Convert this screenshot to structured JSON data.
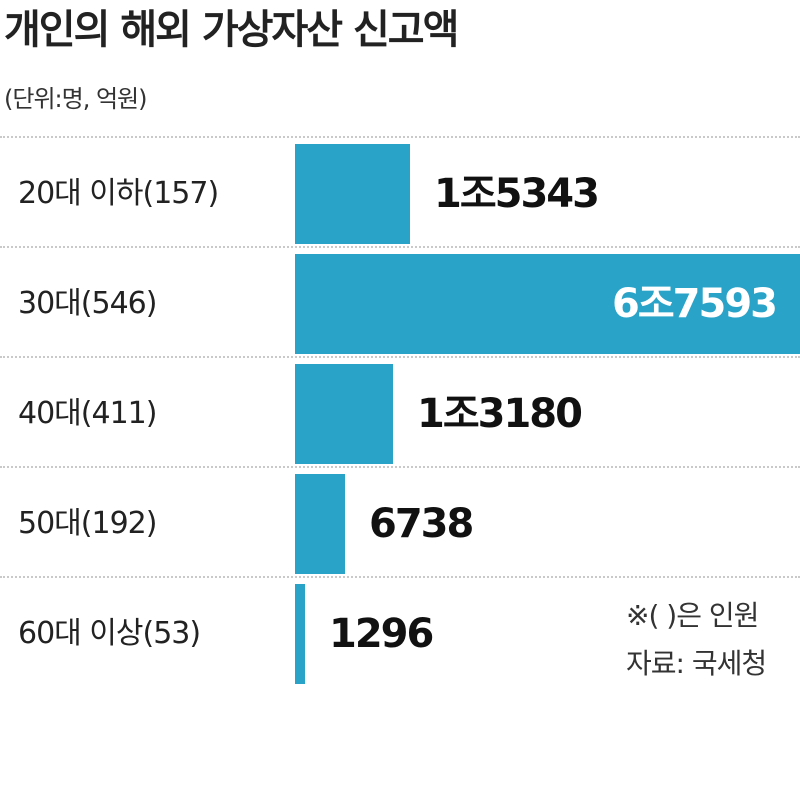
{
  "title": "개인의 해외 가상자산 신고액",
  "unit": "(단위:명, 억원)",
  "note": "※( )은 인원",
  "source": "자료: 국세청",
  "chart_data": {
    "type": "bar",
    "orientation": "horizontal",
    "title": "개인의 해외 가상자산 신고액",
    "categories": [
      "20대 이하(157)",
      "30대(546)",
      "40대(411)",
      "50대(192)",
      "60대 이상(53)"
    ],
    "values": [
      15343,
      67593,
      13180,
      6738,
      1296
    ],
    "value_labels": [
      "1조5343",
      "6조7593",
      "1조3180",
      "6738",
      "1296"
    ],
    "bar_color": "#2aa3c8",
    "grid": false,
    "legend": "none"
  }
}
